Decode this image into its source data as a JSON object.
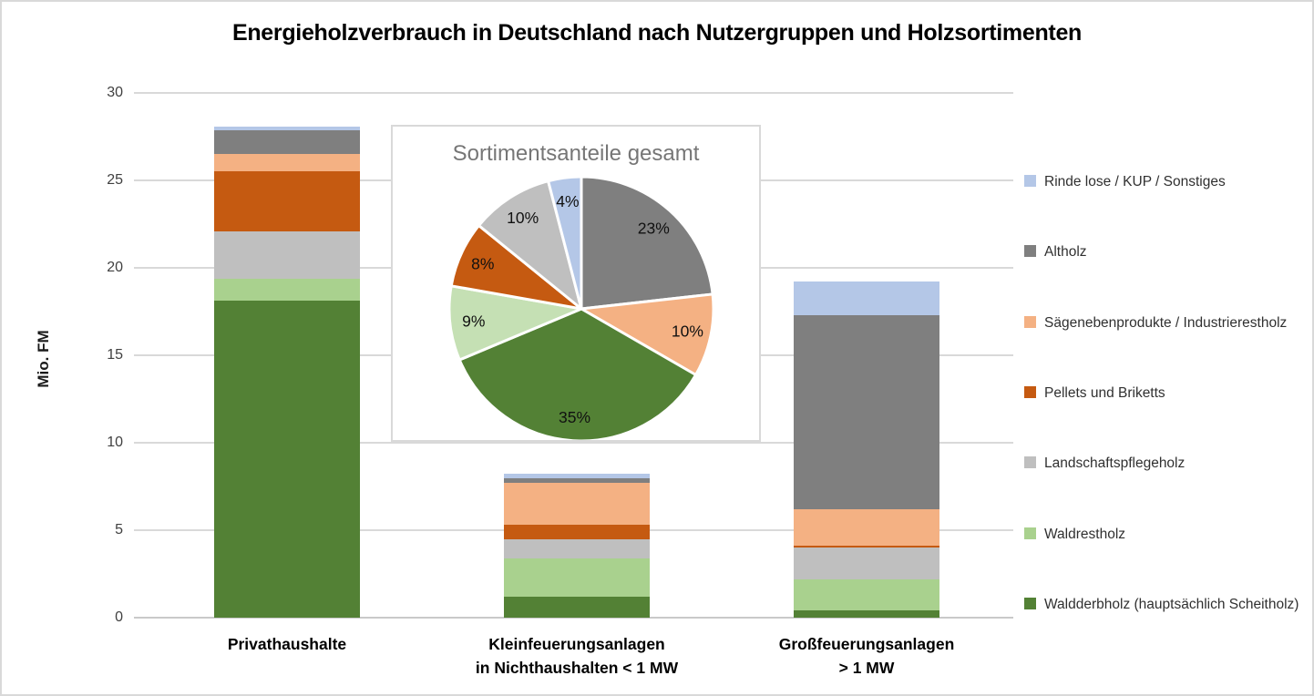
{
  "chart_data": [
    {
      "type": "bar",
      "stacked": true,
      "title": "Energieholzverbrauch in Deutschland nach Nutzergruppen und Holzsortimenten",
      "xlabel": "",
      "ylabel": "Mio. FM",
      "ylim": [
        0,
        30
      ],
      "yticks": [
        "30",
        "25",
        "20",
        "15",
        "10",
        "5",
        "0"
      ],
      "grid": true,
      "legend_position": "right",
      "categories": [
        {
          "lines": [
            "Privathaushalte"
          ]
        },
        {
          "lines": [
            "Kleinfeuerungsanlagen",
            "in Nichthaushalten < 1 MW"
          ]
        },
        {
          "lines": [
            "Großfeuerungsanlagen",
            "> 1 MW"
          ]
        }
      ],
      "series": [
        {
          "name": "Rinde lose / KUP / Sonstiges",
          "color": "#B4C7E7",
          "values": [
            0.2,
            0.3,
            1.9
          ]
        },
        {
          "name": "Altholz",
          "color": "#7F7F7F",
          "values": [
            1.35,
            0.25,
            11.1
          ]
        },
        {
          "name": "Sägenebenprodukte / Industrierestholz",
          "color": "#F4B183",
          "values": [
            1.0,
            2.4,
            2.1
          ]
        },
        {
          "name": "Pellets und Briketts",
          "color": "#C55A11",
          "values": [
            3.4,
            0.8,
            0.1
          ]
        },
        {
          "name": "Landschaftspflegeholz",
          "color": "#BFBFBF",
          "values": [
            2.7,
            1.1,
            1.8
          ]
        },
        {
          "name": "Waldrestholz",
          "color": "#A9D18E",
          "values": [
            1.3,
            2.2,
            1.8
          ]
        },
        {
          "name": "Waldderbholz (hauptsächlich Scheitholz)",
          "color": "#538135",
          "values": [
            18.1,
            1.2,
            0.4
          ]
        }
      ],
      "totals": [
        28.05,
        8.25,
        19.2
      ]
    },
    {
      "type": "pie",
      "title": "Sortimentsanteile gesamt",
      "start_angle_deg": 0,
      "direction": "clockwise",
      "slices": [
        {
          "label": "Altholz",
          "pct": 23,
          "pct_label": "23%",
          "color": "#7F7F7F"
        },
        {
          "label": "Sägenebenprodukte / Industrierestholz",
          "pct": 10,
          "pct_label": "10%",
          "color": "#F4B183"
        },
        {
          "label": "Waldderbholz (hauptsächlich Scheitholz)",
          "pct": 35,
          "pct_label": "35%",
          "color": "#538135"
        },
        {
          "label": "Waldrestholz",
          "pct": 9,
          "pct_label": "9%",
          "color": "#C5E0B4"
        },
        {
          "label": "Pellets und Briketts",
          "pct": 8,
          "pct_label": "8%",
          "color": "#C55A11"
        },
        {
          "label": "Landschaftspflegeholz",
          "pct": 10,
          "pct_label": "10%",
          "color": "#BFBFBF"
        },
        {
          "label": "Rinde lose / KUP / Sonstiges",
          "pct": 4,
          "pct_label": "4%",
          "color": "#B4C7E7"
        }
      ]
    }
  ],
  "colors": {
    "grid": "#D9D9D9",
    "inset_border": "#D9D9D9",
    "pie_title_text": "#767676",
    "title_text": "#000000"
  }
}
